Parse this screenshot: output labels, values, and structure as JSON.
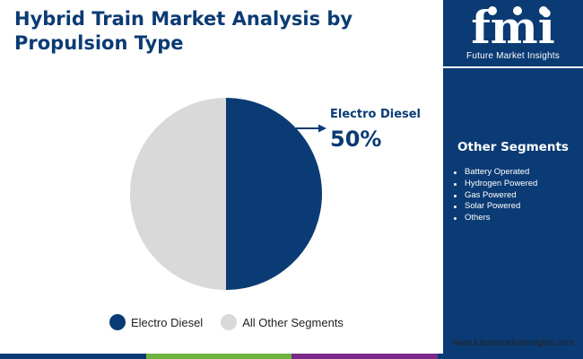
{
  "title": "Hybrid Train Market Analysis by Propulsion Type",
  "brand": {
    "logo_text": "fmi",
    "name": "Future Market Insights",
    "website": "www.futuremarketinsights.com"
  },
  "sidebar": {
    "heading": "Other Segments",
    "items": [
      "Battery Operated",
      "Hydrogen Powered",
      "Gas Powered",
      "Solar Powered",
      "Others"
    ]
  },
  "callout": {
    "label": "Electro Diesel",
    "value": "50%"
  },
  "chart_data": {
    "type": "pie",
    "title": "Hybrid Train Market Analysis by Propulsion Type",
    "slices": [
      {
        "label": "Electro Diesel",
        "value": 50,
        "color": "#0b3b74"
      },
      {
        "label": "All Other Segments",
        "value": 50,
        "color": "#d9d9d9"
      }
    ],
    "legend_position": "bottom"
  },
  "colors": {
    "brand_navy": "#0b3b74",
    "slice_grey": "#d9d9d9",
    "bottom_bar": [
      "#0b3b74",
      "#6db33f",
      "#7a2a8a",
      "#0b3b74"
    ]
  }
}
